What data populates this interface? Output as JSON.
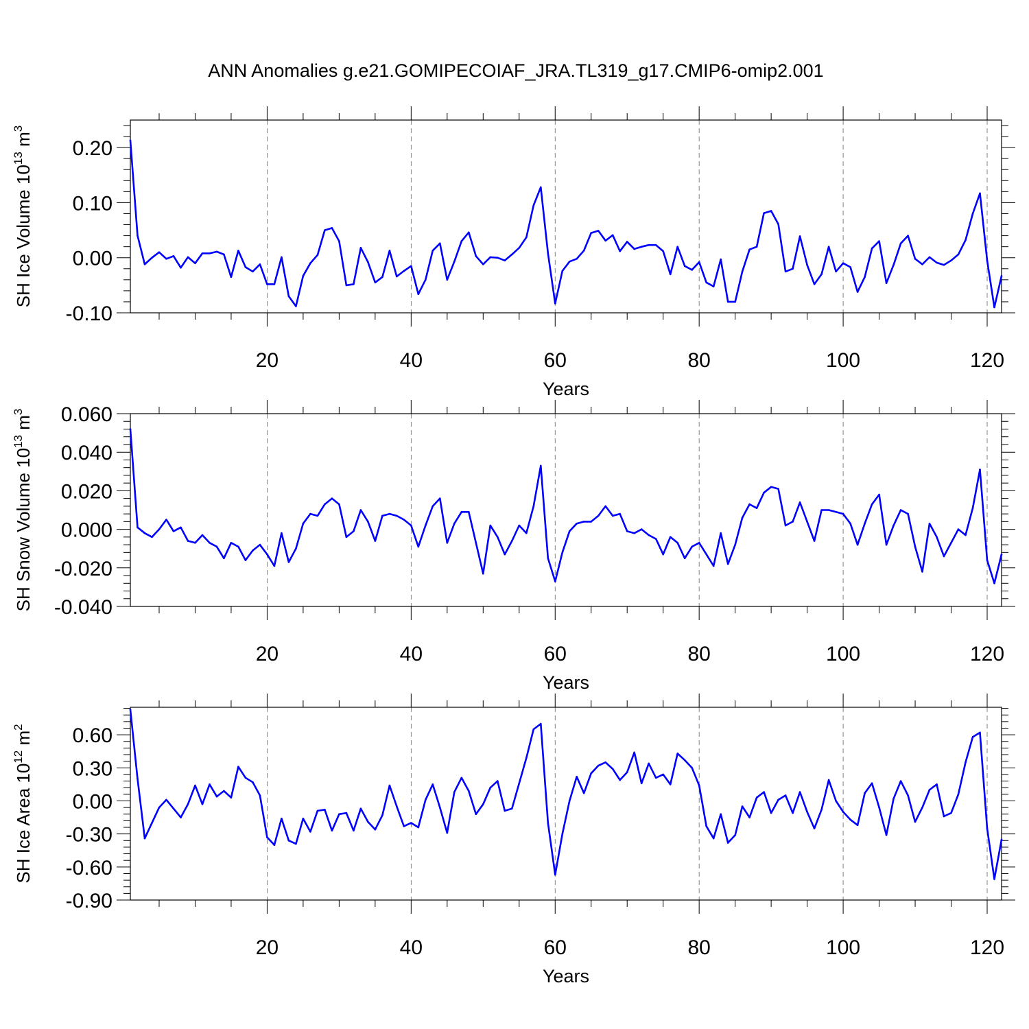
{
  "title": "ANN Anomalies g.e21.GOMIPECOIAF_JRA.TL319_g17.CMIP6-omip2.001",
  "colors": {
    "series": "#0000ff",
    "axes": "#000000",
    "grid": "#000000"
  },
  "chart_data": [
    {
      "type": "line",
      "ylabel": "SH Ice Volume 10",
      "ylabel_exp": "13",
      "ylabel_unit": " m",
      "ylabel_unit_exp": "3",
      "xlabel": "Years",
      "xlim": [
        1,
        122
      ],
      "ylim": [
        -0.1,
        0.25
      ],
      "xticks": [
        20,
        40,
        60,
        80,
        100,
        120
      ],
      "xtick_labels": [
        "20",
        "40",
        "60",
        "80",
        "100",
        "120"
      ],
      "yticks": [
        -0.1,
        0.0,
        0.1,
        0.2
      ],
      "ytick_labels": [
        "-0.10",
        "0.00",
        "0.10",
        "0.20"
      ],
      "grid": "vertical dashed at major x ticks",
      "series": [
        {
          "values": [
            0.213,
            0.04,
            -0.012,
            0.0,
            0.01,
            -0.002,
            0.003,
            -0.018,
            0.001,
            -0.01,
            0.008,
            0.008,
            0.011,
            0.006,
            -0.035,
            0.013,
            -0.017,
            -0.025,
            -0.012,
            -0.048,
            -0.048,
            0.001,
            -0.07,
            -0.088,
            -0.033,
            -0.01,
            0.005,
            0.05,
            0.054,
            0.03,
            -0.05,
            -0.048,
            0.018,
            -0.008,
            -0.045,
            -0.035,
            0.013,
            -0.034,
            -0.024,
            -0.015,
            -0.066,
            -0.04,
            0.013,
            0.026,
            -0.04,
            -0.007,
            0.03,
            0.046,
            0.003,
            -0.012,
            0.001,
            0.0,
            -0.005,
            0.006,
            0.018,
            0.037,
            0.095,
            0.128,
            0.008,
            -0.083,
            -0.024,
            -0.007,
            -0.002,
            0.013,
            0.045,
            0.049,
            0.031,
            0.041,
            0.012,
            0.029,
            0.016,
            0.02,
            0.023,
            0.023,
            0.012,
            -0.03,
            0.02,
            -0.015,
            -0.022,
            -0.008,
            -0.045,
            -0.052,
            -0.003,
            -0.08,
            -0.08,
            -0.025,
            0.015,
            0.02,
            0.081,
            0.085,
            0.061,
            -0.025,
            -0.02,
            0.039,
            -0.013,
            -0.048,
            -0.03,
            0.02,
            -0.025,
            -0.01,
            -0.017,
            -0.062,
            -0.035,
            0.017,
            0.03,
            -0.046,
            -0.013,
            0.026,
            0.04,
            -0.002,
            -0.012,
            0.001,
            -0.009,
            -0.013,
            -0.005,
            0.006,
            0.032,
            0.08,
            0.117,
            -0.005,
            -0.09,
            -0.033
          ]
        }
      ]
    },
    {
      "type": "line",
      "ylabel": "SH Snow Volume 10",
      "ylabel_exp": "13",
      "ylabel_unit": " m",
      "ylabel_unit_exp": "3",
      "xlabel": "Years",
      "xlim": [
        1,
        122
      ],
      "ylim": [
        -0.04,
        0.06
      ],
      "xticks": [
        20,
        40,
        60,
        80,
        100,
        120
      ],
      "xtick_labels": [
        "20",
        "40",
        "60",
        "80",
        "100",
        "120"
      ],
      "yticks": [
        -0.04,
        -0.02,
        0.0,
        0.02,
        0.04,
        0.06
      ],
      "ytick_labels": [
        "-0.040",
        "-0.020",
        "0.000",
        "0.020",
        "0.040",
        "0.060"
      ],
      "grid": "vertical dashed at major x ticks",
      "series": [
        {
          "values": [
            0.052,
            0.001,
            -0.002,
            -0.004,
            0.0,
            0.005,
            -0.001,
            0.001,
            -0.006,
            -0.007,
            -0.003,
            -0.007,
            -0.009,
            -0.015,
            -0.007,
            -0.009,
            -0.016,
            -0.011,
            -0.008,
            -0.013,
            -0.019,
            -0.002,
            -0.017,
            -0.01,
            0.003,
            0.008,
            0.007,
            0.013,
            0.016,
            0.013,
            -0.004,
            -0.001,
            0.01,
            0.004,
            -0.006,
            0.007,
            0.008,
            0.007,
            0.005,
            0.002,
            -0.009,
            0.002,
            0.012,
            0.016,
            -0.007,
            0.003,
            0.009,
            0.009,
            -0.007,
            -0.023,
            0.002,
            -0.004,
            -0.013,
            -0.006,
            0.002,
            -0.002,
            0.012,
            0.033,
            -0.015,
            -0.027,
            -0.012,
            -0.001,
            0.003,
            0.004,
            0.004,
            0.007,
            0.012,
            0.007,
            0.008,
            -0.001,
            -0.002,
            0.0,
            -0.003,
            -0.005,
            -0.013,
            -0.004,
            -0.007,
            -0.015,
            -0.009,
            -0.007,
            -0.013,
            -0.019,
            -0.002,
            -0.018,
            -0.008,
            0.006,
            0.013,
            0.011,
            0.019,
            0.022,
            0.021,
            0.002,
            0.004,
            0.014,
            0.004,
            -0.006,
            0.01,
            0.01,
            0.009,
            0.008,
            0.003,
            -0.008,
            0.003,
            0.013,
            0.018,
            -0.008,
            0.002,
            0.01,
            0.008,
            -0.009,
            -0.022,
            0.003,
            -0.004,
            -0.014,
            -0.007,
            0.0,
            -0.003,
            0.011,
            0.031,
            -0.016,
            -0.028,
            -0.013
          ]
        }
      ]
    },
    {
      "type": "line",
      "ylabel": "SH Ice Area 10",
      "ylabel_exp": "12",
      "ylabel_unit": " m",
      "ylabel_unit_exp": "2",
      "xlabel": "Years",
      "xlim": [
        1,
        122
      ],
      "ylim": [
        -0.9,
        0.85
      ],
      "xticks": [
        20,
        40,
        60,
        80,
        100,
        120
      ],
      "xtick_labels": [
        "20",
        "40",
        "60",
        "80",
        "100",
        "120"
      ],
      "yticks": [
        -0.9,
        -0.6,
        -0.3,
        0.0,
        0.3,
        0.6
      ],
      "ytick_labels": [
        "-0.90",
        "-0.60",
        "-0.30",
        "0.00",
        "0.30",
        "0.60"
      ],
      "grid": "vertical dashed at major x ticks",
      "series": [
        {
          "values": [
            0.83,
            0.2,
            -0.34,
            -0.2,
            -0.06,
            0.01,
            -0.07,
            -0.15,
            -0.03,
            0.14,
            -0.03,
            0.15,
            0.04,
            0.09,
            0.03,
            0.31,
            0.21,
            0.17,
            0.05,
            -0.33,
            -0.4,
            -0.16,
            -0.36,
            -0.39,
            -0.16,
            -0.28,
            -0.09,
            -0.08,
            -0.27,
            -0.12,
            -0.11,
            -0.27,
            -0.07,
            -0.19,
            -0.26,
            -0.13,
            0.14,
            -0.05,
            -0.23,
            -0.2,
            -0.24,
            0.01,
            0.15,
            -0.06,
            -0.29,
            0.08,
            0.21,
            0.09,
            -0.12,
            -0.03,
            0.12,
            0.18,
            -0.09,
            -0.07,
            0.16,
            0.39,
            0.65,
            0.7,
            -0.2,
            -0.67,
            -0.3,
            0.0,
            0.22,
            0.07,
            0.25,
            0.32,
            0.35,
            0.29,
            0.19,
            0.26,
            0.44,
            0.16,
            0.34,
            0.21,
            0.24,
            0.15,
            0.43,
            0.37,
            0.3,
            0.14,
            -0.23,
            -0.34,
            -0.12,
            -0.38,
            -0.31,
            -0.05,
            -0.15,
            0.03,
            0.08,
            -0.11,
            0.01,
            0.05,
            -0.11,
            0.08,
            -0.1,
            -0.25,
            -0.08,
            0.19,
            0.0,
            -0.1,
            -0.17,
            -0.22,
            0.07,
            0.16,
            -0.06,
            -0.31,
            0.02,
            0.18,
            0.05,
            -0.19,
            -0.06,
            0.1,
            0.15,
            -0.14,
            -0.11,
            0.06,
            0.35,
            0.58,
            0.62,
            -0.25,
            -0.71,
            -0.35
          ]
        }
      ]
    }
  ]
}
